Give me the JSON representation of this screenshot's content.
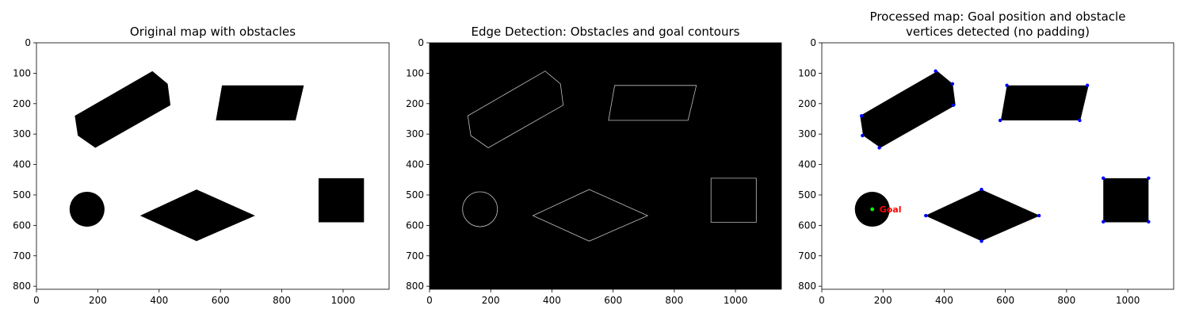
{
  "chart_data": [
    {
      "type": "image",
      "title_lines": [
        "Original map with obstacles"
      ],
      "xlim": [
        0,
        1150
      ],
      "ylim": [
        810,
        0
      ],
      "x_ticks": [
        0,
        200,
        400,
        600,
        800,
        1000
      ],
      "y_ticks": [
        0,
        100,
        200,
        300,
        400,
        500,
        600,
        700,
        800
      ],
      "background": "#ffffff",
      "obstacle_fill": "#000000",
      "render": "filled"
    },
    {
      "type": "image",
      "title_lines": [
        "Edge Detection: Obstacles and goal contours"
      ],
      "xlim": [
        0,
        1150
      ],
      "ylim": [
        810,
        0
      ],
      "x_ticks": [
        0,
        200,
        400,
        600,
        800,
        1000
      ],
      "y_ticks": [
        0,
        100,
        200,
        300,
        400,
        500,
        600,
        700,
        800
      ],
      "background": "#000000",
      "edge_color": "#bfbfbf",
      "render": "edges"
    },
    {
      "type": "image",
      "title_lines": [
        "Processed map: Goal position and obstacle",
        "vertices detected (no padding)"
      ],
      "xlim": [
        0,
        1150
      ],
      "ylim": [
        810,
        0
      ],
      "x_ticks": [
        0,
        200,
        400,
        600,
        800,
        1000
      ],
      "y_ticks": [
        0,
        100,
        200,
        300,
        400,
        500,
        600,
        700,
        800
      ],
      "background": "#ffffff",
      "obstacle_fill": "#000000",
      "vertex_color": "#0000ff",
      "goal_color": "#00ff00",
      "goal_label": "Goal",
      "goal_label_color": "#ff0000",
      "render": "processed"
    }
  ],
  "map": {
    "obstacles": [
      {
        "kind": "polygon",
        "points": [
          [
            125,
            240
          ],
          [
            378,
            93
          ],
          [
            428,
            135
          ],
          [
            437,
            205
          ],
          [
            192,
            345
          ],
          [
            135,
            305
          ]
        ]
      },
      {
        "kind": "polygon",
        "points": [
          [
            605,
            140
          ],
          [
            872,
            140
          ],
          [
            845,
            255
          ],
          [
            585,
            255
          ]
        ]
      },
      {
        "kind": "polygon",
        "points": [
          [
            522,
            482
          ],
          [
            713,
            568
          ],
          [
            522,
            652
          ],
          [
            338,
            568
          ]
        ]
      },
      {
        "kind": "polygon",
        "points": [
          [
            920,
            445
          ],
          [
            1068,
            445
          ],
          [
            1068,
            590
          ],
          [
            920,
            590
          ]
        ]
      },
      {
        "kind": "circle",
        "center": [
          165,
          547
        ],
        "radius": 57
      }
    ],
    "vertices": [
      [
        130,
        240
      ],
      [
        133,
        305
      ],
      [
        188,
        345
      ],
      [
        372,
        93
      ],
      [
        427,
        135
      ],
      [
        430,
        205
      ],
      [
        605,
        140
      ],
      [
        868,
        140
      ],
      [
        843,
        255
      ],
      [
        583,
        255
      ],
      [
        522,
        482
      ],
      [
        710,
        568
      ],
      [
        522,
        652
      ],
      [
        340,
        568
      ],
      [
        920,
        445
      ],
      [
        1068,
        445
      ],
      [
        1068,
        588
      ],
      [
        920,
        588
      ]
    ],
    "goal": [
      165,
      547
    ]
  }
}
